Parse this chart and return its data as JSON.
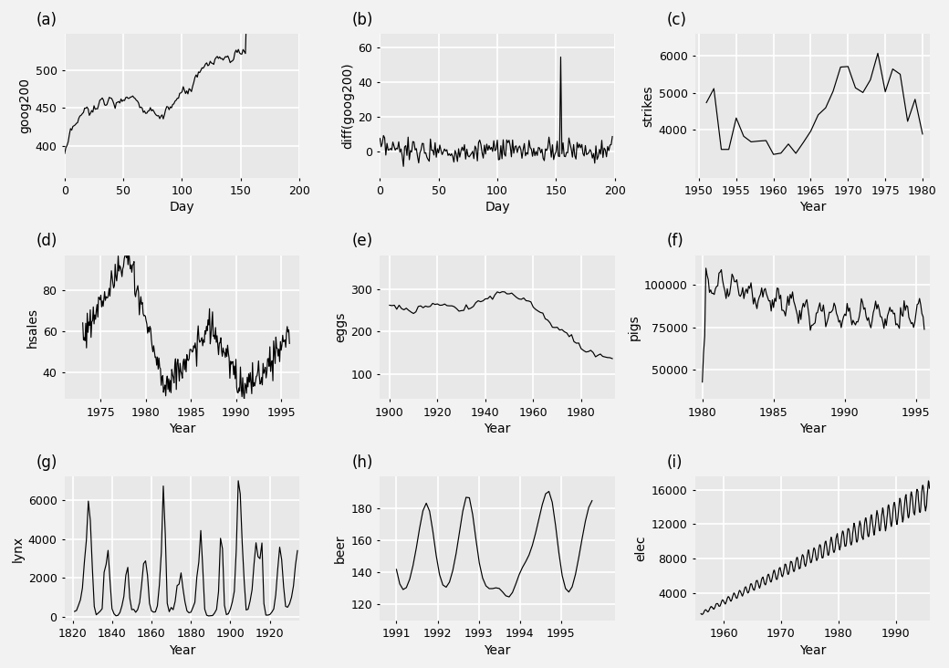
{
  "panels": [
    {
      "label": "(a)",
      "ylabel": "goog200",
      "xlabel": "Day",
      "xlim": [
        0,
        200
      ],
      "xticks": [
        0,
        50,
        100,
        150,
        200
      ],
      "yticks": [
        400,
        450,
        500
      ],
      "ylim": [
        358,
        548
      ]
    },
    {
      "label": "(b)",
      "ylabel": "diff(goog200)",
      "xlabel": "Day",
      "xlim": [
        0,
        200
      ],
      "xticks": [
        0,
        50,
        100,
        150,
        200
      ],
      "yticks": [
        0,
        20,
        40,
        60
      ],
      "ylim": [
        -15,
        68
      ]
    },
    {
      "label": "(c)",
      "ylabel": "strikes",
      "xlabel": "Year",
      "xlim": [
        1949.5,
        1981
      ],
      "xticks": [
        1950,
        1955,
        1960,
        1965,
        1970,
        1975,
        1980
      ],
      "yticks": [
        4000,
        5000,
        6000
      ],
      "ylim": [
        2700,
        6600
      ]
    },
    {
      "label": "(d)",
      "ylabel": "hsales",
      "xlabel": "Year",
      "xlim": [
        1971,
        1997
      ],
      "xticks": [
        1975,
        1980,
        1985,
        1990,
        1995
      ],
      "yticks": [
        40,
        60,
        80
      ],
      "ylim": [
        27,
        97
      ]
    },
    {
      "label": "(e)",
      "ylabel": "eggs",
      "xlabel": "Year",
      "xlim": [
        1896,
        1994
      ],
      "xticks": [
        1900,
        1920,
        1940,
        1960,
        1980
      ],
      "yticks": [
        100,
        200,
        300
      ],
      "ylim": [
        40,
        380
      ]
    },
    {
      "label": "(f)",
      "ylabel": "pigs",
      "xlabel": "Year",
      "xlim": [
        1979.5,
        1996
      ],
      "xticks": [
        1980,
        1985,
        1990,
        1995
      ],
      "yticks": [
        50000,
        75000,
        100000
      ],
      "ylim": [
        33000,
        117000
      ]
    },
    {
      "label": "(g)",
      "ylabel": "lynx",
      "xlabel": "Year",
      "xlim": [
        1816,
        1935
      ],
      "xticks": [
        1820,
        1840,
        1860,
        1880,
        1900,
        1920
      ],
      "yticks": [
        0,
        2000,
        4000,
        6000
      ],
      "ylim": [
        -200,
        7200
      ]
    },
    {
      "label": "(h)",
      "ylabel": "beer",
      "xlabel": "Year",
      "xlim": [
        1990.6,
        1996.3
      ],
      "xticks": [
        1991,
        1992,
        1993,
        1994,
        1995
      ],
      "yticks": [
        120,
        140,
        160,
        180
      ],
      "ylim": [
        110,
        200
      ]
    },
    {
      "label": "(i)",
      "ylabel": "elec",
      "xlabel": "Year",
      "xlim": [
        1955,
        1996
      ],
      "xticks": [
        1960,
        1970,
        1980,
        1990
      ],
      "yticks": [
        4000,
        8000,
        12000,
        16000
      ],
      "ylim": [
        800,
        17500
      ]
    }
  ],
  "bg_color": "#e8e8e8",
  "fig_bg_color": "#f2f2f2",
  "line_color": "#000000",
  "line_width": 0.85,
  "grid_color": "#ffffff",
  "grid_linewidth": 1.2,
  "label_fontsize": 12,
  "tick_fontsize": 9,
  "axis_label_fontsize": 10
}
